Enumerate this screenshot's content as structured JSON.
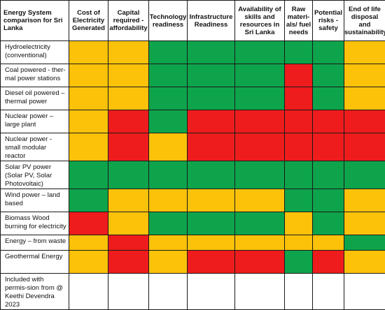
{
  "colors": {
    "G": "#0ea44b",
    "A": "#fcc20a",
    "R": "#ee1c1c",
    "W": "#ffffff"
  },
  "header": {
    "corner": "Energy System comparison for Sri Lanka",
    "columns": [
      "Cost of Electricity Generated",
      "Capital required - affordability",
      "Technology readiness",
      "Infrastructure Readiness",
      "Availability of skills and resources in Sri Lanka",
      "Raw materi-als/ fuel needs",
      "Potential risks - safety",
      "End of life disposal and sustainability"
    ]
  },
  "rows": [
    {
      "label": "Hydroelectricity (conventional)",
      "ratings": [
        "A",
        "A",
        "G",
        "G",
        "G",
        "G",
        "G",
        "A"
      ]
    },
    {
      "label": "Coal powered -  ther-mal power stations",
      "ratings": [
        "A",
        "A",
        "G",
        "G",
        "G",
        "R",
        "G",
        "A"
      ]
    },
    {
      "label": "Diesel oil powered – thermal power",
      "ratings": [
        "A",
        "A",
        "G",
        "G",
        "G",
        "R",
        "G",
        "A"
      ]
    },
    {
      "label": "Nuclear power – large plant",
      "ratings": [
        "A",
        "R",
        "G",
        "R",
        "R",
        "R",
        "R",
        "R"
      ]
    },
    {
      "label": "Nuclear power -small modular reactor",
      "ratings": [
        "A",
        "R",
        "A",
        "R",
        "R",
        "R",
        "R",
        "R"
      ]
    },
    {
      "label": "Solar PV power (Solar PV, Solar Photovoltaic)",
      "ratings": [
        "G",
        "G",
        "G",
        "G",
        "G",
        "G",
        "G",
        "G"
      ]
    },
    {
      "label": "Wind power – land based",
      "ratings": [
        "G",
        "A",
        "A",
        "A",
        "A",
        "G",
        "G",
        "A"
      ]
    },
    {
      "label": "Biomass Wood burning for electricity",
      "ratings": [
        "R",
        "A",
        "G",
        "G",
        "G",
        "A",
        "G",
        "A"
      ]
    },
    {
      "label": "Energy – from waste",
      "ratings": [
        "A",
        "R",
        "A",
        "A",
        "A",
        "A",
        "A",
        "G"
      ]
    },
    {
      "label": "Geothermal Energy",
      "ratings": [
        "A",
        "R",
        "A",
        "R",
        "R",
        "G",
        "R",
        "A"
      ]
    },
    {
      "label": "Included with permis-sion from @ Keethi Devendra 2023",
      "ratings": [
        "W",
        "W",
        "W",
        "W",
        "W",
        "W",
        "W",
        "W"
      ]
    }
  ]
}
